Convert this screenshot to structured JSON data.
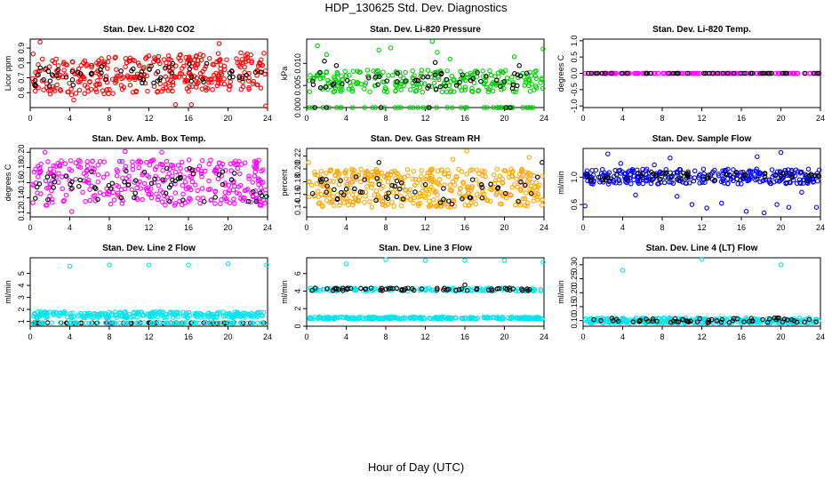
{
  "figure": {
    "title": "HDP_130625  Std. Dev. Diagnostics",
    "xlabel": "Hour of Day (UTC)"
  },
  "chart_data": [
    {
      "type": "scatter",
      "title": "Stan. Dev. Li-820 CO2",
      "ylabel": "Licor ppm",
      "xlim": [
        0,
        24
      ],
      "ylim": [
        0.5,
        0.96
      ],
      "xticks": [
        0,
        4,
        8,
        12,
        16,
        20,
        24
      ],
      "yticks": [
        0.6,
        0.7,
        0.8,
        0.9
      ],
      "ytick_labels": [
        "0.6",
        "0.7",
        "0.8",
        "0.9"
      ],
      "series": [
        {
          "color": "#ff0000",
          "band": [
            0.6,
            0.85
          ],
          "trend": 0.002,
          "n": 360,
          "outliers": [
            [
              1.0,
              0.94
            ],
            [
              4.4,
              0.55
            ],
            [
              14.7,
              0.52
            ],
            [
              16.3,
              0.52
            ],
            [
              19.1,
              0.93
            ],
            [
              23.8,
              0.51
            ],
            [
              0.3,
              0.86
            ]
          ]
        },
        {
          "color": "#000000",
          "band": [
            0.66,
            0.8
          ],
          "trend": 0.002,
          "n": 60,
          "outliers": []
        }
      ]
    },
    {
      "type": "scatter",
      "title": "Stan. Dev. Li-820 Pressure",
      "ylabel": "kPa",
      "xlim": [
        0,
        24
      ],
      "ylim": [
        0,
        0.0155
      ],
      "xticks": [
        0,
        4,
        8,
        12,
        16,
        20,
        24
      ],
      "yticks": [
        0,
        0.005,
        0.01
      ],
      "ytick_labels": [
        "0.000",
        "0.005",
        "0.010"
      ],
      "series": [
        {
          "color": "#00d000",
          "band": [
            0.0035,
            0.0085
          ],
          "trend": 0,
          "n": 300,
          "baseline": 0,
          "outliers": [
            [
              1.1,
              0.014
            ],
            [
              2.0,
              0.012
            ],
            [
              7.3,
              0.013
            ],
            [
              8.5,
              0.0135
            ],
            [
              12.7,
              0.015
            ],
            [
              13.2,
              0.0125
            ],
            [
              14.5,
              0.011
            ],
            [
              21.0,
              0.0115
            ],
            [
              23.9,
              0.0133
            ]
          ]
        },
        {
          "color": "#000000",
          "band": [
            0.004,
            0.008
          ],
          "trend": 0,
          "n": 55,
          "baseline": 0,
          "outliers": [
            [
              1.8,
              0.0105
            ],
            [
              3.0,
              0.0095
            ],
            [
              13.0,
              0.0102
            ],
            [
              21.5,
              0.0095
            ]
          ]
        }
      ]
    },
    {
      "type": "scatter",
      "title": "Stan. Dev. Li-820 Temp.",
      "ylabel": "degrees C",
      "xlim": [
        0,
        24
      ],
      "ylim": [
        -1.05,
        1.05
      ],
      "xticks": [
        0,
        4,
        8,
        12,
        16,
        20,
        24
      ],
      "yticks": [
        -1,
        -0.5,
        0,
        0.5,
        1
      ],
      "ytick_labels": [
        "-1.0",
        "-0.5",
        "0.0",
        "0.5",
        "1.0"
      ],
      "series": [
        {
          "color": "#ff00ff",
          "band": [
            0,
            0
          ],
          "trend": 0,
          "n": 140,
          "outliers": []
        },
        {
          "color": "#000000",
          "band": [
            0,
            0
          ],
          "trend": 0,
          "n": 45,
          "outliers": []
        }
      ]
    },
    {
      "type": "scatter",
      "title": "Stan. Dev. Amb. Box Temp.",
      "ylabel": "degrees C",
      "xlim": [
        0,
        24
      ],
      "ylim": [
        0.115,
        0.205
      ],
      "xticks": [
        0,
        4,
        8,
        12,
        16,
        20,
        24
      ],
      "yticks": [
        0.12,
        0.14,
        0.16,
        0.18,
        0.2
      ],
      "ytick_labels": [
        "0.12",
        "0.14",
        "0.16",
        "0.18",
        "0.20"
      ],
      "series": [
        {
          "color": "#ff00ff",
          "band": [
            0.13,
            0.19
          ],
          "trend": 0,
          "n": 340,
          "outliers": [
            [
              1.5,
              0.2
            ],
            [
              9.6,
              0.201
            ],
            [
              4.2,
              0.122
            ],
            [
              13.3,
              0.2
            ]
          ]
        },
        {
          "color": "#000000",
          "band": [
            0.135,
            0.18
          ],
          "trend": 0,
          "n": 60,
          "outliers": []
        }
      ]
    },
    {
      "type": "scatter",
      "title": "Stan. Dev. Gas Stream RH",
      "ylabel": "percent",
      "xlim": [
        0,
        24
      ],
      "ylim": [
        0.125,
        0.232
      ],
      "xticks": [
        0,
        4,
        8,
        12,
        16,
        20,
        24
      ],
      "yticks": [
        0.14,
        0.16,
        0.18,
        0.2,
        0.22
      ],
      "ytick_labels": [
        "0.14",
        "0.16",
        "0.18",
        "0.20",
        "0.22"
      ],
      "series": [
        {
          "color": "#ffa500",
          "band": [
            0.14,
            0.2
          ],
          "trend": 0,
          "n": 420,
          "outliers": [
            [
              0.2,
              0.21
            ],
            [
              16.2,
              0.228
            ],
            [
              14.8,
              0.215
            ],
            [
              22.5,
              0.218
            ]
          ]
        },
        {
          "color": "#000000",
          "band": [
            0.145,
            0.19
          ],
          "trend": 0,
          "n": 55,
          "outliers": [
            [
              7.3,
              0.21
            ],
            [
              23.8,
              0.21
            ]
          ]
        }
      ]
    },
    {
      "type": "scatter",
      "title": "Stan. Dev. Sample Flow",
      "ylabel": "ml/min",
      "xlim": [
        0,
        24
      ],
      "ylim": [
        0.42,
        1.42
      ],
      "xticks": [
        0,
        4,
        8,
        12,
        16,
        20,
        24
      ],
      "yticks": [
        0.6,
        1.0
      ],
      "ytick_labels": [
        "0.6",
        "1.0"
      ],
      "series": [
        {
          "color": "#0000ff",
          "band": [
            0.9,
            1.12
          ],
          "trend": 0,
          "n": 300,
          "outliers": [
            [
              0.2,
              0.58
            ],
            [
              2.5,
              1.34
            ],
            [
              3.8,
              1.2
            ],
            [
              5.3,
              0.74
            ],
            [
              9.5,
              0.72
            ],
            [
              11.0,
              0.6
            ],
            [
              12.5,
              0.55
            ],
            [
              14.0,
              0.62
            ],
            [
              16.5,
              0.5
            ],
            [
              18.3,
              0.48
            ],
            [
              19.6,
              0.6
            ],
            [
              20.8,
              0.56
            ],
            [
              22.1,
              0.78
            ],
            [
              23.6,
              0.56
            ],
            [
              20.0,
              1.36
            ],
            [
              17.6,
              1.3
            ],
            [
              8.8,
              1.28
            ],
            [
              7.2,
              1.18
            ]
          ]
        },
        {
          "color": "#000000",
          "band": [
            0.95,
            1.08
          ],
          "trend": 0,
          "n": 60,
          "outliers": []
        }
      ]
    },
    {
      "type": "scatter",
      "title": "Stan. Dev. Line 2 Flow",
      "ylabel": "ml/min",
      "xlim": [
        0,
        24
      ],
      "ylim": [
        0.6,
        6.3
      ],
      "xticks": [
        0,
        4,
        8,
        12,
        16,
        20,
        24
      ],
      "yticks": [
        1,
        2,
        3,
        4,
        5
      ],
      "ytick_labels": [
        "1",
        "2",
        "3",
        "4",
        "5"
      ],
      "series": [
        {
          "color": "#00e5ee",
          "band": [
            1.3,
            1.8
          ],
          "trend": 0,
          "n": 260,
          "outliers": [
            [
              4.0,
              5.6
            ],
            [
              8.0,
              5.7
            ],
            [
              12.0,
              5.7
            ],
            [
              16.0,
              5.7
            ],
            [
              20.0,
              5.8
            ],
            [
              23.9,
              5.7
            ]
          ]
        },
        {
          "color": "#000000",
          "band": [
            0.85,
            0.9
          ],
          "trend": 0,
          "n": 55,
          "outliers": []
        },
        {
          "color": "#00e5ee",
          "band": [
            0.85,
            0.9
          ],
          "trend": 0,
          "n": 90,
          "outliers": []
        }
      ]
    },
    {
      "type": "scatter",
      "title": "Stan. Dev. Line 3 Flow",
      "ylabel": "ml/min",
      "xlim": [
        0,
        24
      ],
      "ylim": [
        0,
        7.8
      ],
      "xticks": [
        0,
        4,
        8,
        12,
        16,
        20,
        24
      ],
      "yticks": [
        0,
        2,
        4,
        6
      ],
      "ytick_labels": [
        "0",
        "2",
        "4",
        "6"
      ],
      "series": [
        {
          "color": "#00e5ee",
          "band": [
            0.8,
            1.05
          ],
          "trend": 0,
          "n": 240,
          "outliers": [
            [
              4.0,
              7.1
            ],
            [
              8.0,
              7.6
            ],
            [
              12.0,
              7.5
            ],
            [
              16.0,
              7.5
            ],
            [
              20.0,
              7.5
            ],
            [
              23.9,
              7.3
            ]
          ]
        },
        {
          "color": "#00e5ee",
          "band": [
            4.0,
            4.35
          ],
          "trend": 0,
          "n": 120,
          "outliers": []
        },
        {
          "color": "#000000",
          "band": [
            4.05,
            4.35
          ],
          "trend": 0,
          "n": 60,
          "outliers": [
            [
              16.0,
              4.7
            ]
          ]
        }
      ]
    },
    {
      "type": "scatter",
      "title": "Stan. Dev. Line 4 (LT) Flow",
      "ylabel": "ml/min",
      "xlim": [
        0,
        24
      ],
      "ylim": [
        0.08,
        0.325
      ],
      "xticks": [
        0,
        4,
        8,
        12,
        16,
        20,
        24
      ],
      "yticks": [
        0.1,
        0.15,
        0.2,
        0.25,
        0.3
      ],
      "ytick_labels": [
        "0.10",
        "0.15",
        "0.20",
        "0.25",
        "0.30"
      ],
      "series": [
        {
          "color": "#00e5ee",
          "band": [
            0.09,
            0.11
          ],
          "trend": 0,
          "n": 320,
          "outliers": [
            [
              4.0,
              0.28
            ],
            [
              12.0,
              0.32
            ],
            [
              20.0,
              0.3
            ]
          ]
        },
        {
          "color": "#000000",
          "band": [
            0.093,
            0.11
          ],
          "trend": 0,
          "n": 60,
          "outliers": []
        }
      ]
    }
  ]
}
